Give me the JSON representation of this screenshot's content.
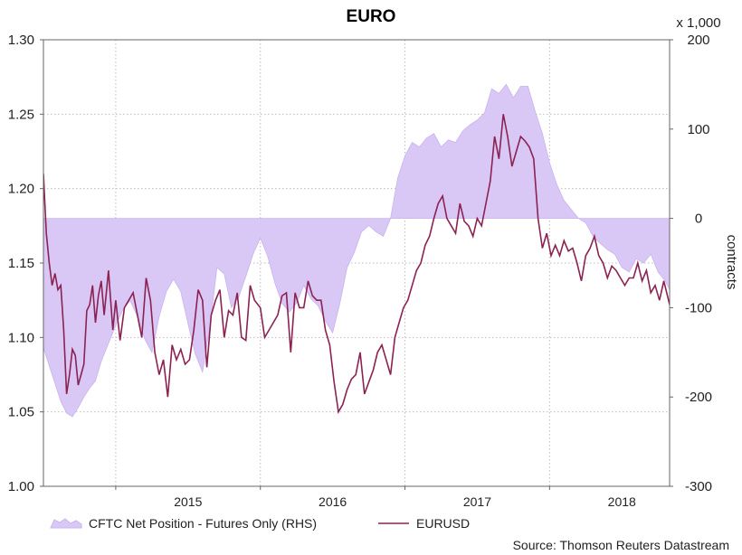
{
  "chart_data": {
    "type": "area",
    "title": "EURO",
    "source": "Source: Thomson Reuters Datastream",
    "left_axis": {
      "ticks": [
        "1.30",
        "1.25",
        "1.20",
        "1.15",
        "1.10",
        "1.05",
        "1.00"
      ],
      "min": 1.0,
      "max": 1.3
    },
    "right_axis": {
      "ticks": [
        "200",
        "100",
        "0",
        "-100",
        "-200",
        "-300"
      ],
      "min": -300,
      "max": 200,
      "unit": "x 1,000",
      "label": "contracts"
    },
    "x_axis": {
      "ticks": [
        "2015",
        "2016",
        "2017",
        "2018"
      ],
      "range": [
        2014.5,
        2018.83
      ]
    },
    "grid": true,
    "legend_position": "bottom-left",
    "series": [
      {
        "name": "CFTC Net Position - Futures Only (RHS)",
        "axis": "right",
        "kind": "area",
        "color": "#d9c8f5",
        "x": [
          2014.5,
          2014.54,
          2014.58,
          2014.62,
          2014.66,
          2014.7,
          2014.74,
          2014.78,
          2014.82,
          2014.86,
          2014.9,
          2014.95,
          2015.0,
          2015.05,
          2015.1,
          2015.15,
          2015.2,
          2015.25,
          2015.3,
          2015.35,
          2015.4,
          2015.45,
          2015.5,
          2015.55,
          2015.6,
          2015.65,
          2015.7,
          2015.75,
          2015.8,
          2015.85,
          2015.9,
          2015.95,
          2016.0,
          2016.05,
          2016.1,
          2016.15,
          2016.2,
          2016.25,
          2016.3,
          2016.35,
          2016.4,
          2016.45,
          2016.5,
          2016.55,
          2016.6,
          2016.65,
          2016.7,
          2016.75,
          2016.8,
          2016.85,
          2016.9,
          2016.95,
          2017.0,
          2017.05,
          2017.1,
          2017.15,
          2017.2,
          2017.25,
          2017.3,
          2017.35,
          2017.4,
          2017.45,
          2017.5,
          2017.55,
          2017.6,
          2017.65,
          2017.7,
          2017.75,
          2017.8,
          2017.85,
          2017.9,
          2017.95,
          2018.0,
          2018.05,
          2018.1,
          2018.15,
          2018.2,
          2018.25,
          2018.3,
          2018.35,
          2018.4,
          2018.45,
          2018.5,
          2018.55,
          2018.6,
          2018.65,
          2018.7,
          2018.75,
          2018.8,
          2018.83
        ],
        "y": [
          -145,
          -165,
          -185,
          -205,
          -218,
          -222,
          -212,
          -200,
          -190,
          -182,
          -160,
          -140,
          -120,
          -102,
          -92,
          -110,
          -135,
          -150,
          -110,
          -82,
          -68,
          -82,
          -118,
          -152,
          -172,
          -122,
          -55,
          -62,
          -100,
          -88,
          -65,
          -40,
          -22,
          -42,
          -72,
          -95,
          -105,
          -95,
          -75,
          -90,
          -98,
          -115,
          -128,
          -95,
          -55,
          -38,
          -15,
          -8,
          -15,
          -20,
          0,
          45,
          70,
          85,
          80,
          90,
          95,
          80,
          88,
          85,
          98,
          105,
          110,
          118,
          145,
          140,
          150,
          135,
          148,
          148,
          120,
          95,
          62,
          38,
          20,
          10,
          0,
          -5,
          -20,
          -28,
          -35,
          -40,
          -55,
          -60,
          -45,
          -50,
          -40,
          -60,
          -70,
          -80
        ]
      },
      {
        "name": "EURUSD",
        "axis": "left",
        "kind": "line",
        "color": "#8b2252",
        "x": [
          2014.5,
          2014.52,
          2014.54,
          2014.56,
          2014.58,
          2014.6,
          2014.62,
          2014.64,
          2014.66,
          2014.68,
          2014.7,
          2014.72,
          2014.74,
          2014.76,
          2014.78,
          2014.8,
          2014.82,
          2014.84,
          2014.86,
          2014.88,
          2014.9,
          2014.92,
          2014.95,
          2014.98,
          2015.0,
          2015.03,
          2015.06,
          2015.09,
          2015.12,
          2015.15,
          2015.18,
          2015.21,
          2015.24,
          2015.27,
          2015.3,
          2015.33,
          2015.36,
          2015.39,
          2015.42,
          2015.45,
          2015.48,
          2015.51,
          2015.54,
          2015.57,
          2015.6,
          2015.63,
          2015.66,
          2015.69,
          2015.72,
          2015.75,
          2015.78,
          2015.81,
          2015.84,
          2015.87,
          2015.9,
          2015.93,
          2015.96,
          2016.0,
          2016.03,
          2016.06,
          2016.09,
          2016.12,
          2016.15,
          2016.18,
          2016.21,
          2016.24,
          2016.27,
          2016.3,
          2016.33,
          2016.36,
          2016.39,
          2016.42,
          2016.45,
          2016.48,
          2016.51,
          2016.54,
          2016.57,
          2016.6,
          2016.63,
          2016.66,
          2016.69,
          2016.72,
          2016.75,
          2016.78,
          2016.81,
          2016.84,
          2016.87,
          2016.9,
          2016.93,
          2016.96,
          2016.99,
          2017.02,
          2017.05,
          2017.08,
          2017.11,
          2017.14,
          2017.17,
          2017.2,
          2017.23,
          2017.26,
          2017.29,
          2017.32,
          2017.35,
          2017.38,
          2017.41,
          2017.44,
          2017.47,
          2017.5,
          2017.53,
          2017.56,
          2017.59,
          2017.62,
          2017.65,
          2017.68,
          2017.71,
          2017.74,
          2017.77,
          2017.8,
          2017.83,
          2017.86,
          2017.89,
          2017.92,
          2017.95,
          2017.98,
          2018.01,
          2018.04,
          2018.07,
          2018.1,
          2018.13,
          2018.16,
          2018.19,
          2018.22,
          2018.25,
          2018.28,
          2018.31,
          2018.34,
          2018.37,
          2018.4,
          2018.43,
          2018.46,
          2018.49,
          2018.52,
          2018.55,
          2018.58,
          2018.61,
          2018.64,
          2018.67,
          2018.7,
          2018.73,
          2018.76,
          2018.79,
          2018.83
        ],
        "y": [
          1.21,
          1.17,
          1.15,
          1.135,
          1.143,
          1.132,
          1.135,
          1.105,
          1.062,
          1.075,
          1.092,
          1.088,
          1.068,
          1.075,
          1.082,
          1.118,
          1.122,
          1.135,
          1.11,
          1.128,
          1.138,
          1.115,
          1.145,
          1.105,
          1.125,
          1.098,
          1.12,
          1.125,
          1.13,
          1.115,
          1.1,
          1.14,
          1.125,
          1.09,
          1.075,
          1.085,
          1.06,
          1.095,
          1.085,
          1.092,
          1.082,
          1.085,
          1.105,
          1.132,
          1.125,
          1.08,
          1.115,
          1.125,
          1.132,
          1.1,
          1.118,
          1.115,
          1.13,
          1.1,
          1.098,
          1.135,
          1.125,
          1.12,
          1.1,
          1.105,
          1.11,
          1.115,
          1.128,
          1.13,
          1.09,
          1.13,
          1.12,
          1.12,
          1.138,
          1.128,
          1.125,
          1.125,
          1.105,
          1.095,
          1.07,
          1.05,
          1.055,
          1.065,
          1.072,
          1.075,
          1.09,
          1.062,
          1.07,
          1.078,
          1.09,
          1.095,
          1.085,
          1.075,
          1.1,
          1.11,
          1.12,
          1.125,
          1.135,
          1.145,
          1.15,
          1.162,
          1.168,
          1.18,
          1.19,
          1.195,
          1.18,
          1.175,
          1.17,
          1.19,
          1.178,
          1.175,
          1.168,
          1.18,
          1.175,
          1.19,
          1.205,
          1.235,
          1.22,
          1.25,
          1.235,
          1.215,
          1.225,
          1.235,
          1.232,
          1.228,
          1.22,
          1.18,
          1.16,
          1.17,
          1.155,
          1.162,
          1.155,
          1.165,
          1.158,
          1.16,
          1.15,
          1.138,
          1.155,
          1.16,
          1.168,
          1.155,
          1.15,
          1.14,
          1.148,
          1.145,
          1.14,
          1.135,
          1.14,
          1.14,
          1.15,
          1.138,
          1.145,
          1.13,
          1.135,
          1.125,
          1.138,
          1.122
        ]
      }
    ]
  }
}
